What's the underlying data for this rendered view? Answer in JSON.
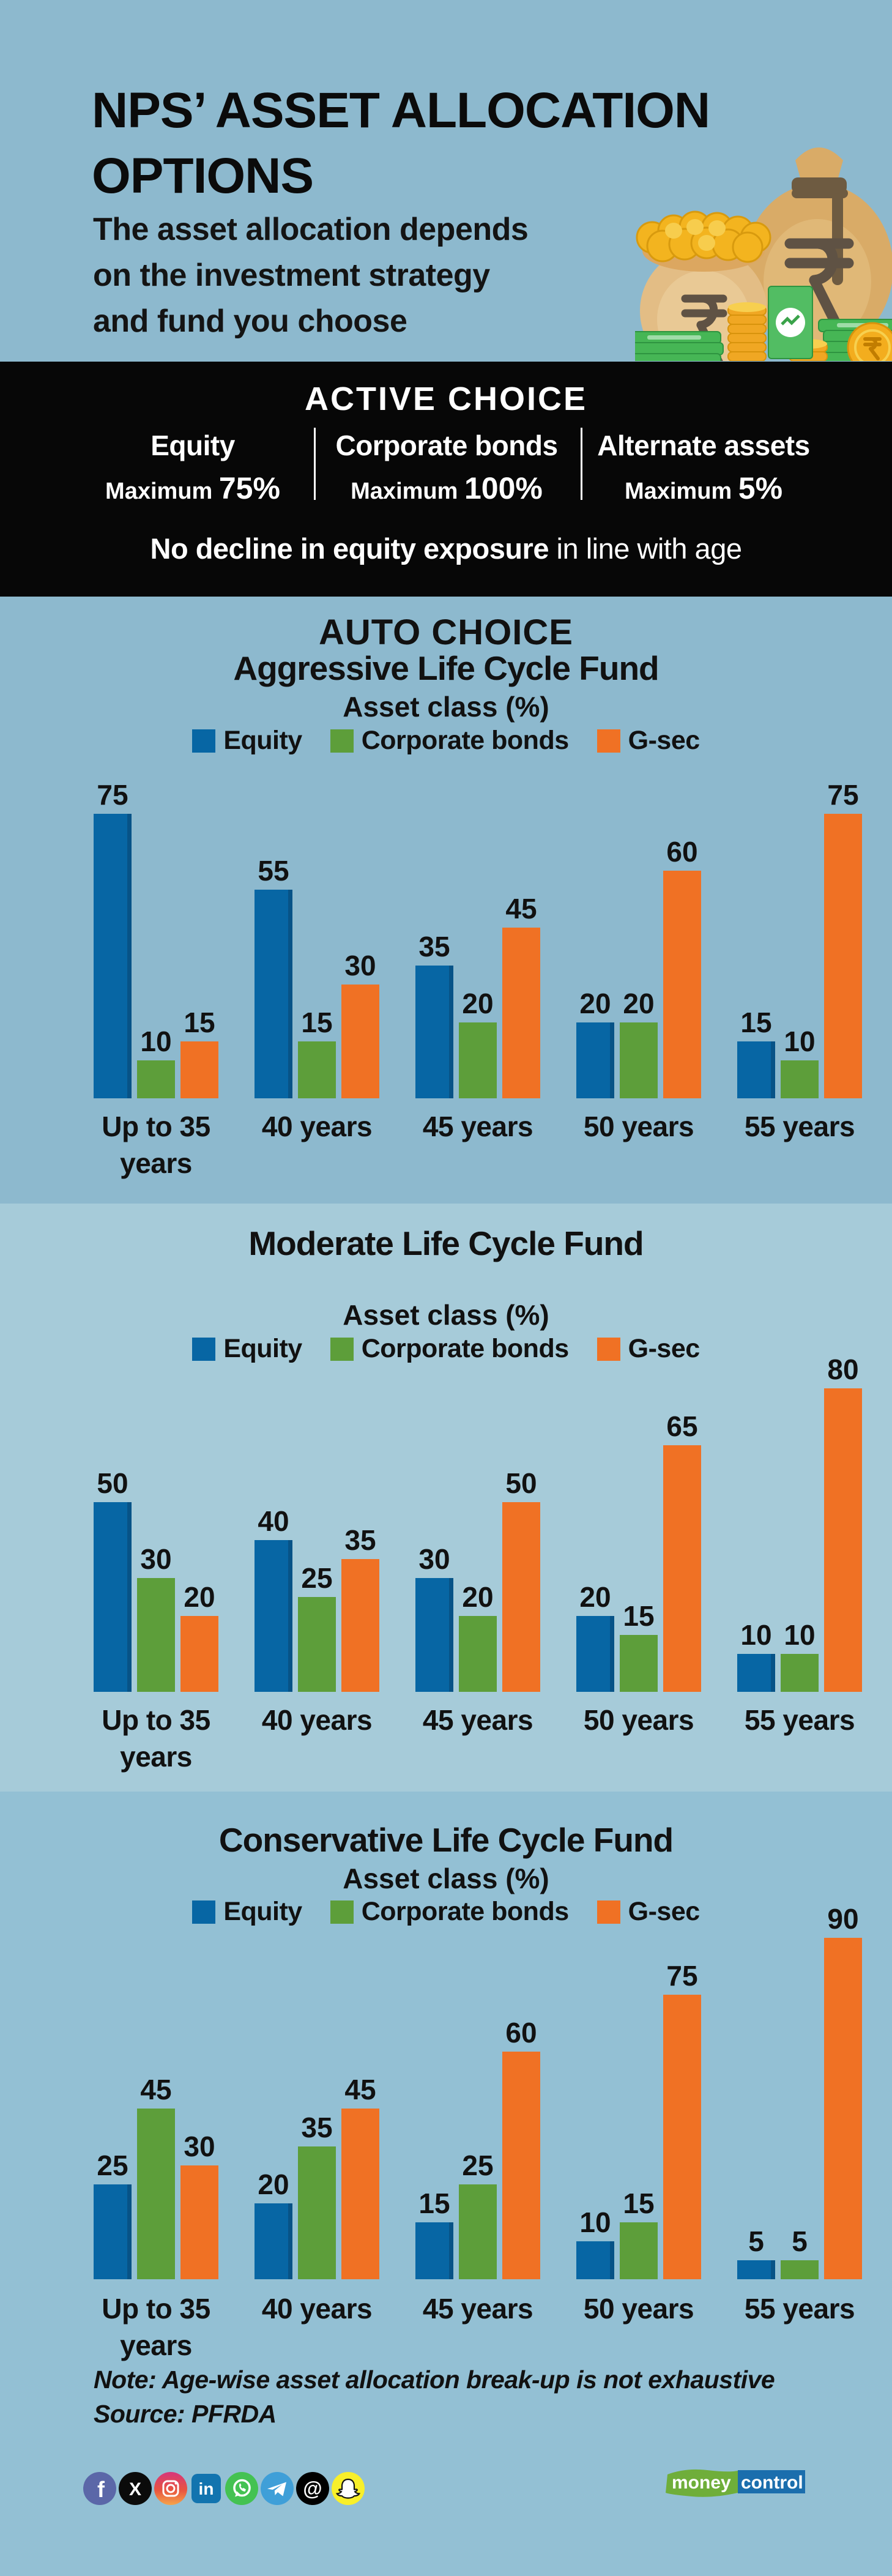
{
  "page": {
    "bg_header": "#8db9ce",
    "bg_moderate": "#a6cbd9",
    "bg_conservative": "#93c0d4",
    "bg_active_band": "#070707"
  },
  "header": {
    "title_line1": "NPS’ ASSET ALLOCATION",
    "title_line2": "OPTIONS",
    "subtitle_line1": "The asset allocation depends",
    "subtitle_line2": "on the investment strategy",
    "subtitle_line3": "and fund you choose"
  },
  "active_choice": {
    "title": "ACTIVE CHOICE",
    "columns": [
      {
        "label": "Equity",
        "max_word": "Maximum ",
        "max_value": "75%"
      },
      {
        "label": "Corporate bonds",
        "max_word": "Maximum ",
        "max_value": "100%"
      },
      {
        "label": "Alternate assets",
        "max_word": "Maximum ",
        "max_value": "5%"
      }
    ],
    "note_bold": "No decline in equity exposure",
    "note_rest": " in line with age"
  },
  "auto_choice_title": "AUTO CHOICE",
  "chart_data": [
    {
      "type": "bar",
      "title": "Aggressive Life Cycle Fund",
      "axis_label": "Asset class (%)",
      "categories": [
        "Up to 35 years",
        "40 years",
        "45 years",
        "50 years",
        "55 years"
      ],
      "series": [
        {
          "name": "Equity",
          "color": "#0766a4",
          "values": [
            75,
            55,
            35,
            20,
            15
          ]
        },
        {
          "name": "Corporate bonds",
          "color": "#5d9e3a",
          "values": [
            10,
            15,
            20,
            20,
            10
          ]
        },
        {
          "name": "G-sec",
          "color": "#f07124",
          "values": [
            15,
            30,
            45,
            60,
            75
          ]
        }
      ],
      "ylim": [
        0,
        100
      ],
      "grid": false,
      "legend_position": "top",
      "value_labels": true
    },
    {
      "type": "bar",
      "title": "Moderate Life Cycle Fund",
      "axis_label": "Asset class (%)",
      "categories": [
        "Up to 35 years",
        "40 years",
        "45 years",
        "50 years",
        "55 years"
      ],
      "series": [
        {
          "name": "Equity",
          "color": "#0766a4",
          "values": [
            50,
            40,
            30,
            20,
            10
          ]
        },
        {
          "name": "Corporate bonds",
          "color": "#5d9e3a",
          "values": [
            30,
            25,
            20,
            15,
            10
          ]
        },
        {
          "name": "G-sec",
          "color": "#f07124",
          "values": [
            20,
            35,
            50,
            65,
            80
          ]
        }
      ],
      "ylim": [
        0,
        100
      ],
      "grid": false,
      "legend_position": "top",
      "value_labels": true
    },
    {
      "type": "bar",
      "title": "Conservative Life Cycle Fund",
      "axis_label": "Asset class (%)",
      "categories": [
        "Up to 35 years",
        "40 years",
        "45 years",
        "50 years",
        "55 years"
      ],
      "series": [
        {
          "name": "Equity",
          "color": "#0766a4",
          "values": [
            25,
            20,
            15,
            10,
            5
          ]
        },
        {
          "name": "Corporate bonds",
          "color": "#5d9e3a",
          "values": [
            45,
            35,
            25,
            15,
            5
          ]
        },
        {
          "name": "G-sec",
          "color": "#f07124",
          "values": [
            30,
            45,
            60,
            75,
            90
          ]
        }
      ],
      "ylim": [
        0,
        100
      ],
      "grid": false,
      "legend_position": "top",
      "value_labels": true
    }
  ],
  "footer": {
    "note": "Note: Age-wise asset allocation break-up is not exhaustive",
    "source": "Source: PFRDA",
    "social_icons": [
      "facebook",
      "x",
      "instagram",
      "linkedin",
      "whatsapp",
      "telegram",
      "threads",
      "snapchat"
    ],
    "logo_money": "money",
    "logo_control": "control"
  }
}
